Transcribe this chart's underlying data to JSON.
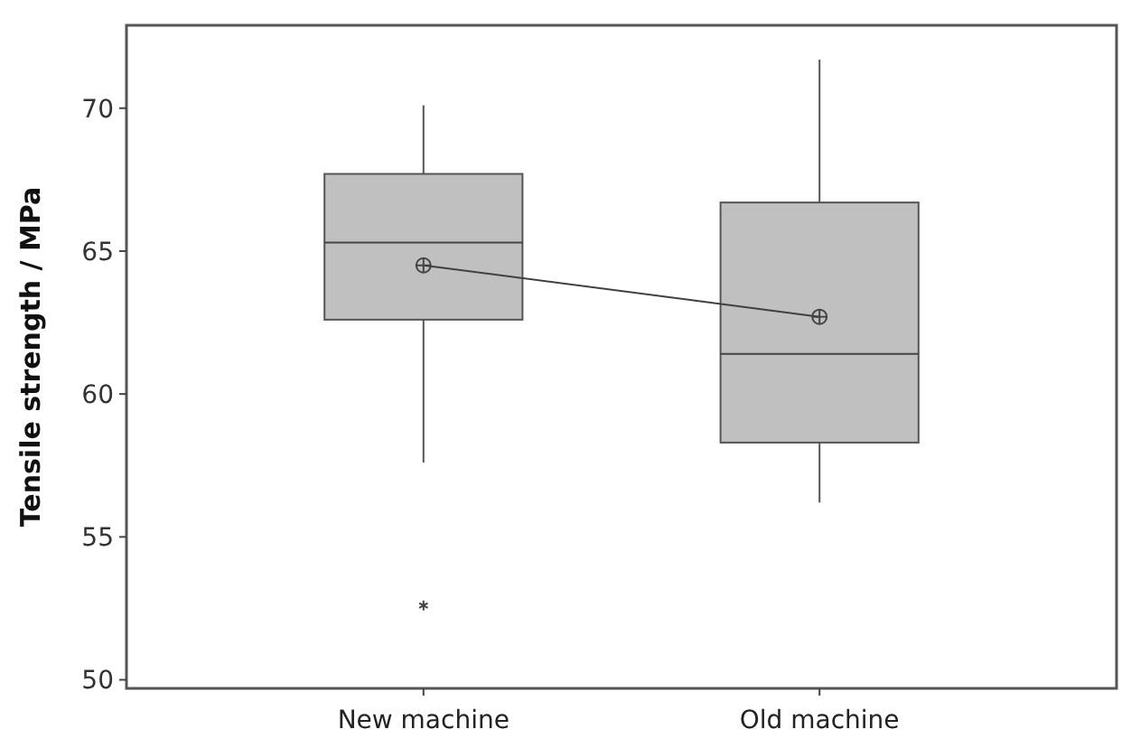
{
  "chart_data": {
    "type": "box",
    "ylabel": "Tensile strength / MPa",
    "categories": [
      "New machine",
      "Old machine"
    ],
    "ylim": [
      49.7,
      72.9
    ],
    "yticks": [
      50,
      55,
      60,
      65,
      70
    ],
    "grid": false,
    "color": "#c0c0c0",
    "boxes": [
      {
        "low": 57.6,
        "q1": 62.6,
        "median": 65.3,
        "q3": 67.7,
        "high": 70.1,
        "mean": 64.5,
        "outliers": [
          52.6
        ]
      },
      {
        "low": 56.2,
        "q1": 58.3,
        "median": 61.4,
        "q3": 66.7,
        "high": 71.7,
        "mean": 62.7
      }
    ],
    "series": [
      {
        "type": "line",
        "values": [
          64.5,
          62.7
        ],
        "color": "#404040",
        "marker": "none"
      }
    ]
  }
}
